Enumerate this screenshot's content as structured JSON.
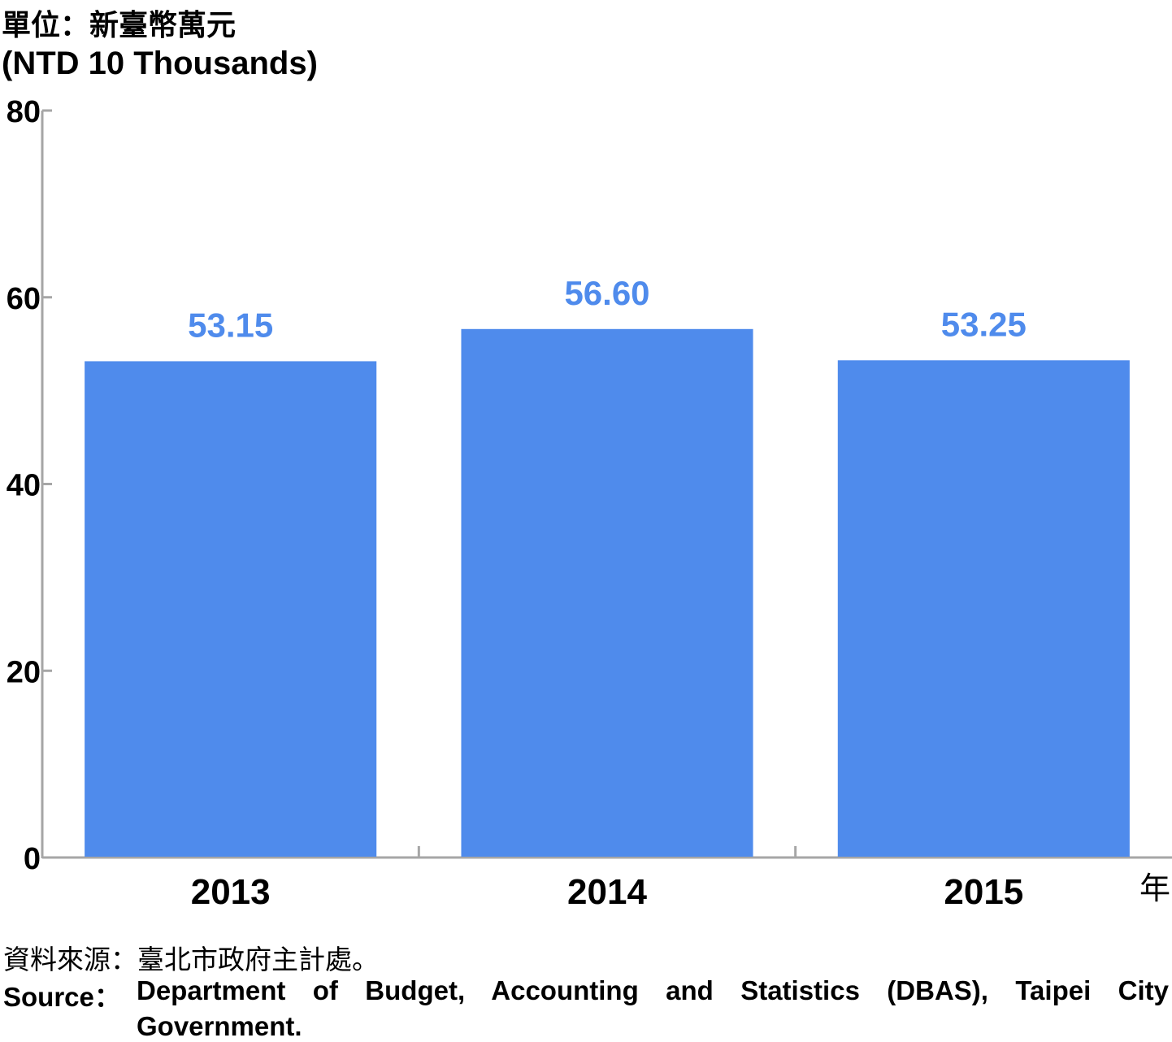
{
  "unit_label_zh": "單位：新臺幣萬元",
  "unit_label_en": "(NTD 10 Thousands)",
  "source_zh": "資料來源：臺北市政府主計處。",
  "source_en": {
    "prefix": "Source：",
    "line1": "Department of Budget, Accounting and Statistics (DBAS), Taipei City",
    "line2": "Government."
  },
  "bar_color": "#4f8bec",
  "label_color": "#4f8bec",
  "chart_data": {
    "type": "bar",
    "categories": [
      "2013",
      "2014",
      "2015"
    ],
    "values": [
      53.15,
      56.6,
      53.25
    ],
    "value_labels": [
      "53.15",
      "56.60",
      "53.25"
    ],
    "ylim": [
      0,
      80
    ],
    "yticks": [
      "0",
      "20",
      "40",
      "60",
      "80"
    ],
    "ytick_values": [
      0,
      20,
      40,
      60,
      80
    ],
    "xlabel": "年",
    "ylabel": "單位：新臺幣萬元 (NTD 10 Thousands)",
    "grid": false,
    "legend": "none"
  }
}
